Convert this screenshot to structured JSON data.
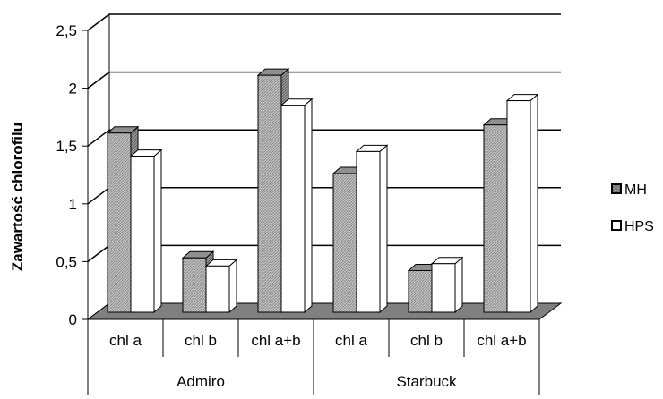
{
  "chart_data": {
    "type": "bar",
    "style": "3d-clustered-column",
    "ylabel": "Zawartość chlorofilu",
    "ylim": [
      0,
      2.5
    ],
    "yticks": [
      "0",
      "0,5",
      "1",
      "1,5",
      "2",
      "2,5"
    ],
    "ytick_values": [
      0,
      0.5,
      1,
      1.5,
      2,
      2.5
    ],
    "categories": [
      "chl a",
      "chl b",
      "chl a+b",
      "chl a",
      "chl b",
      "chl a+b"
    ],
    "groups": [
      {
        "label": "Admiro",
        "span": 3
      },
      {
        "label": "Starbuck",
        "span": 3
      }
    ],
    "series": [
      {
        "name": "MH",
        "values": [
          1.55,
          0.47,
          2.05,
          1.2,
          0.36,
          1.62
        ]
      },
      {
        "name": "HPS",
        "values": [
          1.35,
          0.4,
          1.79,
          1.39,
          0.42,
          1.83
        ]
      }
    ],
    "legend_position": "right",
    "grid": true,
    "colors": {
      "mh_fill": "#b3b3b3",
      "mh_hatch": "#7a7a7a",
      "hps_fill": "#ffffff",
      "floor": "#808080",
      "gridline": "#000000"
    }
  }
}
